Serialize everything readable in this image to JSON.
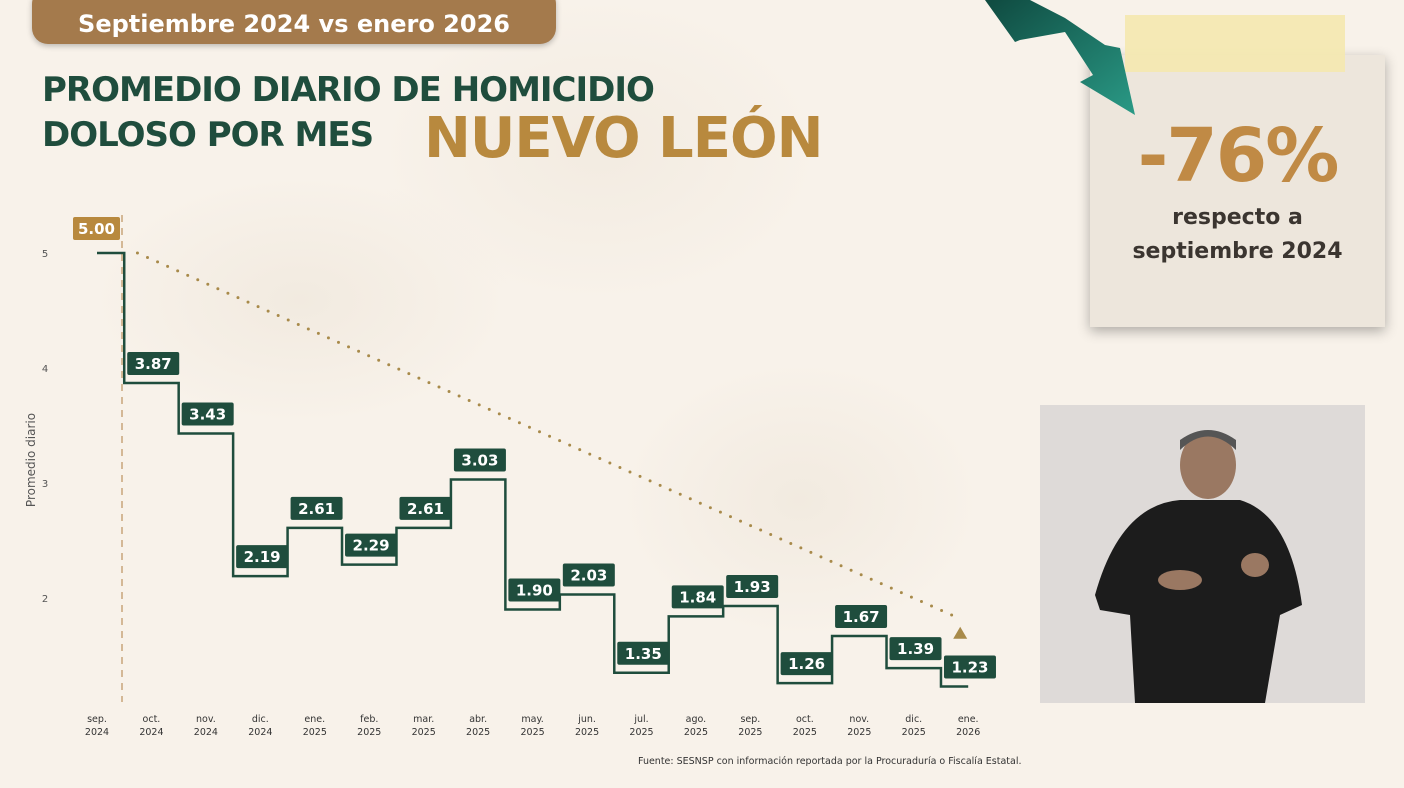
{
  "header": {
    "period": "Septiembre 2024 vs enero 2026"
  },
  "title": {
    "line1": "PROMEDIO DIARIO DE HOMICIDIO",
    "line2": "DOLOSO POR MES",
    "state": "NUEVO LEÓN"
  },
  "callout": {
    "value": "-76%",
    "line1": "respecto a",
    "line2": "septiembre 2024",
    "arrow_icon": "down-arrow-icon"
  },
  "source": "Fuente: SESNSP con información reportada por la Procuraduría o Fiscalía Estatal.",
  "colors": {
    "green": "#1f4d3d",
    "gold": "#b8893e",
    "trend": "#a88a4a"
  },
  "chart_data": {
    "type": "line",
    "style": "step",
    "ylabel": "Promedio diario",
    "yticks": [
      2,
      3,
      4,
      5
    ],
    "ylim": [
      1,
      5.2
    ],
    "categories": [
      "sep. 2024",
      "oct. 2024",
      "nov. 2024",
      "dic. 2024",
      "ene. 2025",
      "feb. 2025",
      "mar. 2025",
      "abr. 2025",
      "may. 2025",
      "jun. 2025",
      "jul. 2025",
      "ago. 2025",
      "sep. 2025",
      "oct. 2025",
      "nov. 2025",
      "dic. 2025",
      "ene. 2026"
    ],
    "values": [
      5.0,
      3.87,
      3.43,
      2.19,
      2.61,
      2.29,
      2.61,
      3.03,
      1.9,
      2.03,
      1.35,
      1.84,
      1.93,
      1.26,
      1.67,
      1.39,
      1.23
    ],
    "labels": [
      "5.00",
      "3.87",
      "3.43",
      "2.19",
      "2.61",
      "2.29",
      "2.61",
      "3.03",
      "1.90",
      "2.03",
      "1.35",
      "1.84",
      "1.93",
      "1.26",
      "1.67",
      "1.39",
      "1.23"
    ],
    "trendline": {
      "from": "oct. 2024",
      "to": "ene. 2026",
      "style": "dotted",
      "from_value": 5.0,
      "to_value": 1.75
    },
    "grid": false
  }
}
